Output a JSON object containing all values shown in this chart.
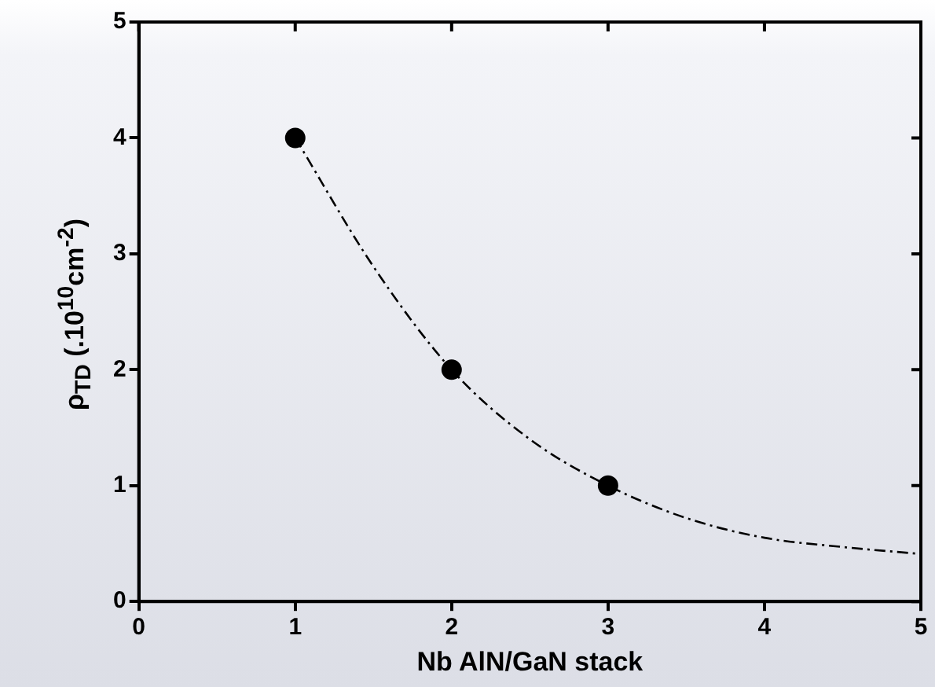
{
  "chart_data": {
    "type": "scatter",
    "xlabel": "Nb AlN/GaN stack",
    "ylabel": "ρ$_{TD}$  (.10$^{10}$cm$^{-2}$)",
    "series": [
      {
        "color": "#000000",
        "marker": "circle",
        "x": [
          1,
          2,
          3
        ],
        "values": [
          4,
          2,
          1
        ]
      },
      {
        "type": "line",
        "color": "#000000",
        "marker": "none",
        "line_style": "dashed",
        "x": [
          1,
          1.5,
          2,
          2.5,
          3,
          3.5,
          4,
          4.5,
          5
        ],
        "values": [
          4,
          2.89,
          2,
          1.4,
          1,
          0.72,
          0.55,
          0.47,
          0.41
        ]
      }
    ],
    "xlim": [
      0,
      5
    ],
    "xticks": [
      0,
      1,
      2,
      3,
      4,
      5
    ],
    "ylim": [
      0,
      5
    ],
    "yticks": [
      0,
      1,
      2,
      3,
      4,
      5
    ],
    "grid": false,
    "legend": false
  }
}
